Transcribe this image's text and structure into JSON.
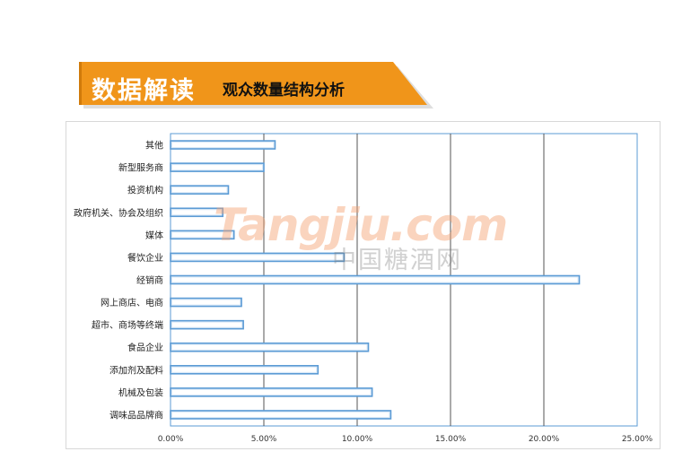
{
  "banner": {
    "title": "数据解读",
    "subtitle": "观众数量结构分析"
  },
  "watermark": {
    "brand": "Tangjiu.com",
    "chinese": "中国糖酒网"
  },
  "colors": {
    "banner_orange": "#f0951a",
    "bar_stroke": "#5b9bd5",
    "bar_fill": "#dbe9f7"
  },
  "chart_data": {
    "type": "bar",
    "orientation": "horizontal",
    "categories": [
      "其他",
      "新型服务商",
      "投资机构",
      "政府机关、协会及组织",
      "媒体",
      "餐饮企业",
      "经销商",
      "网上商店、电商",
      "超市、商场等终端",
      "食品企业",
      "添加剂及配料",
      "机械及包装",
      "调味品品牌商"
    ],
    "values": [
      5.6,
      5.0,
      3.1,
      2.8,
      3.4,
      9.3,
      21.9,
      3.8,
      3.9,
      10.6,
      7.9,
      10.8,
      11.8
    ],
    "xlim": [
      0,
      25
    ],
    "xticks": [
      "0.00%",
      "5.00%",
      "10.00%",
      "15.00%",
      "20.00%",
      "25.00%"
    ],
    "grid": "vertical",
    "legend": "none"
  }
}
